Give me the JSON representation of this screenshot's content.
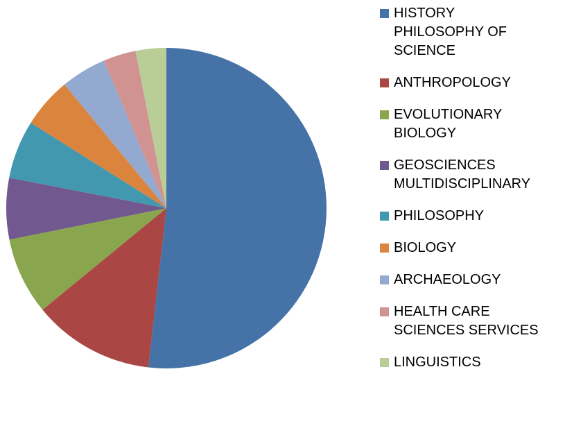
{
  "chart_data": {
    "type": "pie",
    "categories": [
      "HISTORY PHILOSOPHY OF SCIENCE",
      "ANTHROPOLOGY",
      "EVOLUTIONARY BIOLOGY",
      "GEOSCIENCES MULTIDISCIPLINARY",
      "PHILOSOPHY",
      "BIOLOGY",
      "ARCHAEOLOGY",
      "HEALTH CARE SCIENCES SERVICES",
      "LINGUISTICS"
    ],
    "values": [
      51.9,
      12.3,
      7.8,
      6.2,
      5.9,
      5.1,
      4.6,
      3.3,
      3.1
    ],
    "colors": [
      "#4572a7",
      "#aa4643",
      "#89a54e",
      "#71588f",
      "#4198af",
      "#db843d",
      "#93a9cf",
      "#d19392",
      "#b9cd96"
    ],
    "legend": "right"
  }
}
